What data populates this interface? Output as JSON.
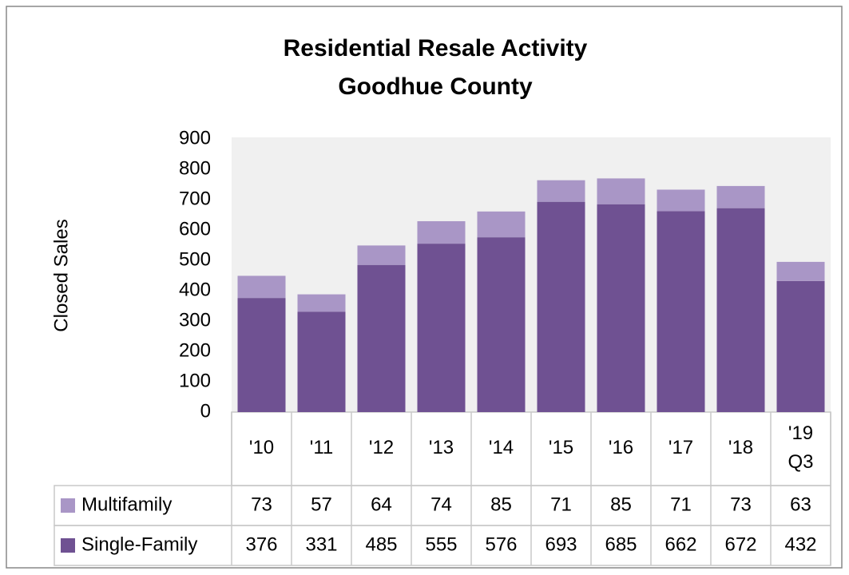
{
  "chart_data": {
    "type": "stacked_bar",
    "title": "Residential Resale Activity",
    "subtitle": "Goodhue County",
    "ylabel": "Closed Sales",
    "categories": [
      "'10",
      "'11",
      "'12",
      "'13",
      "'14",
      "'15",
      "'16",
      "'17",
      "'18",
      "'19 Q3"
    ],
    "series": [
      {
        "name": "Single-Family",
        "color": "#6f5192",
        "values": [
          376,
          331,
          485,
          555,
          576,
          693,
          685,
          662,
          672,
          432
        ]
      },
      {
        "name": "Multifamily",
        "color": "#a996c6",
        "values": [
          73,
          57,
          64,
          74,
          85,
          71,
          85,
          71,
          73,
          63
        ]
      }
    ],
    "ylim": [
      0,
      900
    ],
    "yticks": [
      0,
      100,
      200,
      300,
      400,
      500,
      600,
      700,
      800,
      900
    ],
    "grid": false
  }
}
